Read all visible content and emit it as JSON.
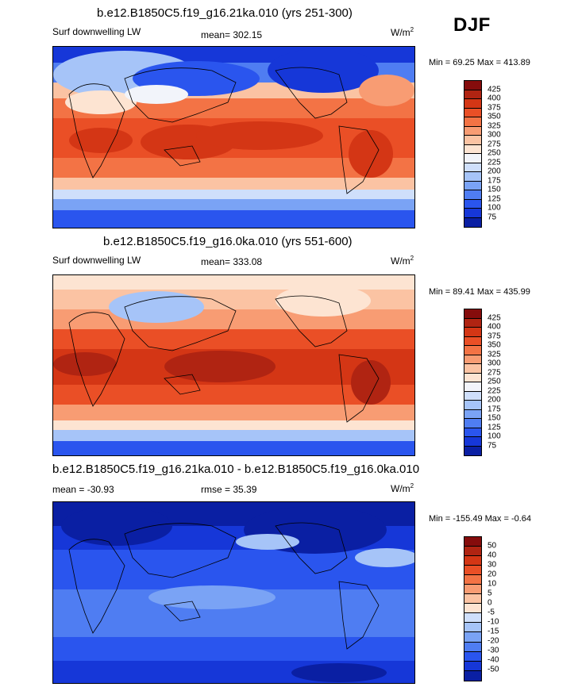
{
  "season": "DJF",
  "units": "W/m",
  "units_sup": "2",
  "colors_abs": [
    "#fcfdfe",
    "#0a1fa3",
    "#1637d8",
    "#2a55ee",
    "#4f7df2",
    "#7aa3f5",
    "#a6c4f8",
    "#cfdffb",
    "#f2f4fa",
    "#fde4d2",
    "#fbc3a3",
    "#f89c73",
    "#f37345",
    "#ea4f26",
    "#d43615",
    "#b02412",
    "#850c0c"
  ],
  "colors_diff": [
    "#0a1fa3",
    "#1637d8",
    "#2a55ee",
    "#4f7df2",
    "#7aa3f5",
    "#a6c4f8",
    "#cfdffb",
    "#f2f4fa",
    "#fde4d2",
    "#fbc3a3",
    "#f89c73",
    "#f37345",
    "#ea4f26",
    "#d43615",
    "#b02412",
    "#850c0c"
  ],
  "panels": [
    {
      "title": "b.e12.B1850C5.f19_g16.21ka.010 (yrs 251-300)",
      "left_label": "Surf downwelling LW",
      "center_label": "mean= 302.15",
      "minmax": "Min = 69.25 Max = 413.89",
      "levels": [
        "425",
        "400",
        "375",
        "350",
        "325",
        "300",
        "275",
        "250",
        "225",
        "200",
        "175",
        "150",
        "125",
        "100",
        "75"
      ]
    },
    {
      "title": "b.e12.B1850C5.f19_g16.0ka.010 (yrs 551-600)",
      "left_label": "Surf downwelling LW",
      "center_label": "mean= 333.08",
      "minmax": "Min = 89.41 Max = 435.99",
      "levels": [
        "425",
        "400",
        "375",
        "350",
        "325",
        "300",
        "275",
        "250",
        "225",
        "200",
        "175",
        "150",
        "125",
        "100",
        "75"
      ]
    },
    {
      "title": "b.e12.B1850C5.f19_g16.21ka.010 - b.e12.B1850C5.f19_g16.0ka.010",
      "left_label": "mean = -30.93",
      "center_label": "rmse = 35.39",
      "minmax": "Min = -155.49 Max = -0.64",
      "levels": [
        "50",
        "40",
        "30",
        "20",
        "10",
        "5",
        "0",
        "-5",
        "-10",
        "-15",
        "-20",
        "-30",
        "-40",
        "-50"
      ]
    }
  ]
}
